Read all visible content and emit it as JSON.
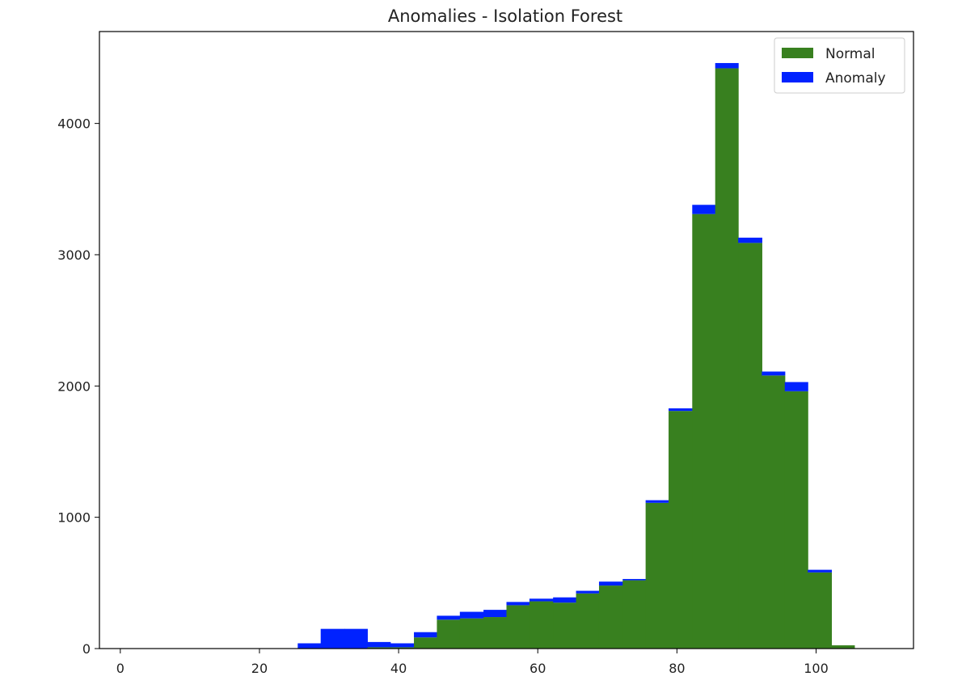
{
  "chart_data": {
    "type": "bar",
    "stacked": true,
    "title": "Anomalies - Isolation Forest",
    "xlabel": "",
    "ylabel": "",
    "xlim": [
      -3,
      114
    ],
    "ylim": [
      0,
      4700
    ],
    "x_ticks": [
      0,
      20,
      40,
      60,
      80,
      100
    ],
    "y_ticks": [
      0,
      1000,
      2000,
      3000,
      4000
    ],
    "bin_edges": [
      25.5,
      28.8,
      32.2,
      35.5,
      38.8,
      42.2,
      45.5,
      48.8,
      52.2,
      55.5,
      58.8,
      62.2,
      65.5,
      68.8,
      72.2,
      75.5,
      78.8,
      82.2,
      85.5,
      88.8,
      92.2,
      95.5,
      98.8,
      102.2,
      105.5,
      108.8
    ],
    "legend_position": "upper right",
    "series": [
      {
        "name": "Normal",
        "color": "#38801f",
        "values": [
          0,
          0,
          0,
          10,
          10,
          85,
          220,
          230,
          240,
          330,
          360,
          350,
          420,
          480,
          520,
          1110,
          1810,
          3310,
          4420,
          3090,
          2080,
          1960,
          580,
          25,
          0
        ]
      },
      {
        "name": "Anomaly",
        "color": "#0022ff",
        "values": [
          40,
          150,
          150,
          40,
          30,
          40,
          30,
          50,
          55,
          25,
          20,
          40,
          20,
          30,
          10,
          20,
          20,
          70,
          40,
          40,
          30,
          70,
          20,
          0,
          0
        ]
      }
    ]
  }
}
